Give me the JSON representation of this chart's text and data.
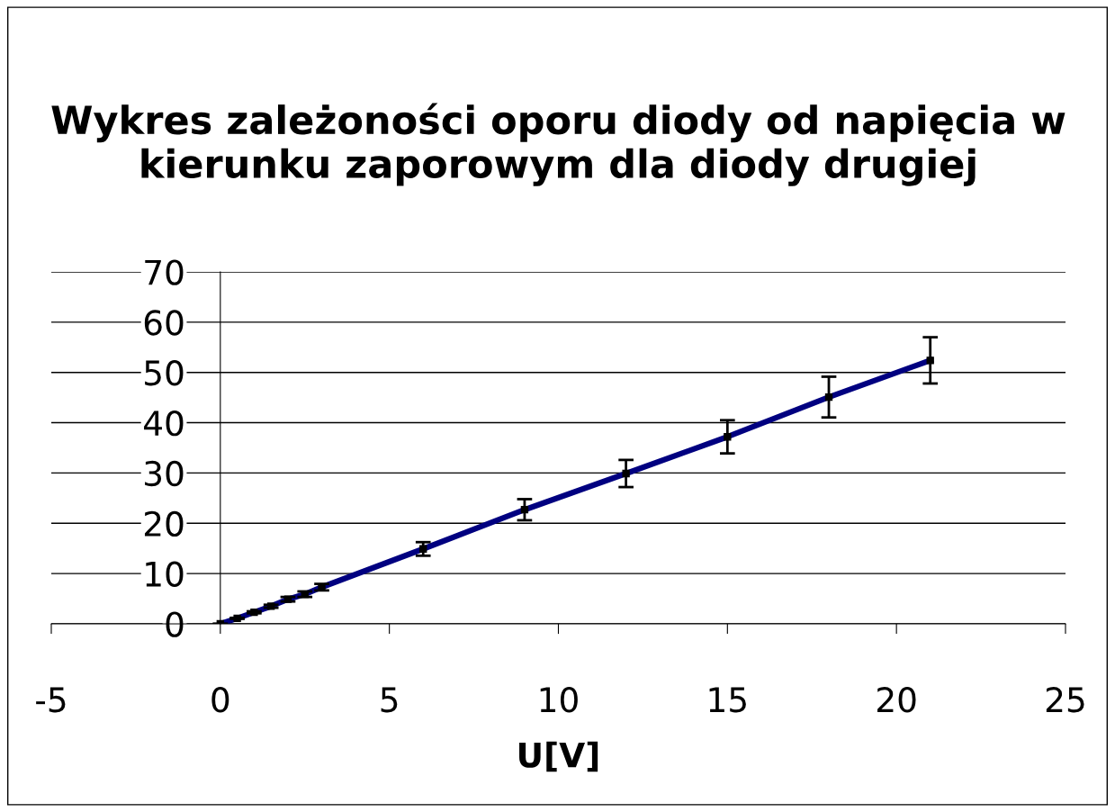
{
  "chart_data": {
    "type": "line",
    "title": "Wykres zależoności oporu diody od napięcia w kierunku zaporowym dla diody drugiej",
    "xlabel": "U[V]",
    "x": [
      0,
      0.5,
      1,
      1.5,
      2,
      2.5,
      3,
      6,
      9,
      12,
      15,
      18,
      21
    ],
    "series": [
      {
        "color": "#000080",
        "values": [
          0,
          1.1,
          2.3,
          3.5,
          4.9,
          5.9,
          7.3,
          14.9,
          22.7,
          29.9,
          37.2,
          45.1,
          52.4
        ],
        "errors": [
          0,
          0.1,
          0.2,
          0.3,
          0.45,
          0.55,
          0.65,
          1.35,
          2.1,
          2.7,
          3.3,
          4.05,
          4.6
        ]
      }
    ],
    "marker": "square",
    "line_style": "solid",
    "grid": "y",
    "xlim": [
      -5,
      25
    ],
    "xticks": [
      -5,
      0,
      5,
      10,
      15,
      20,
      25
    ],
    "ylim": [
      0,
      70
    ],
    "yticks": [
      0,
      10,
      20,
      30,
      40,
      50,
      60,
      70
    ]
  }
}
